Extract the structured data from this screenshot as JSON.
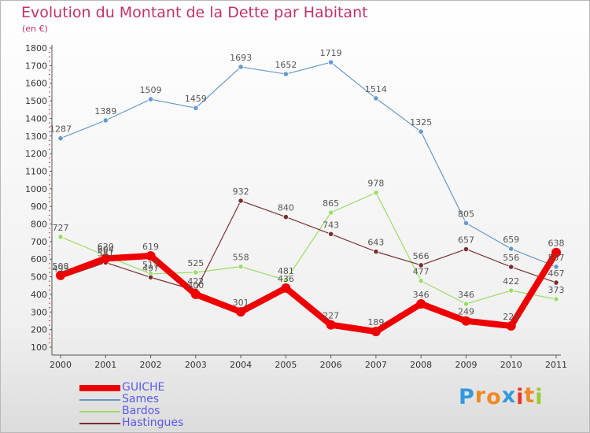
{
  "header": {
    "title": "Evolution du Montant de la Dette par Habitant",
    "unit": "(en €)"
  },
  "chart_data": {
    "type": "line",
    "title": "Evolution du Montant de la Dette par Habitant",
    "subtitle": "(en €)",
    "xlabel": "",
    "ylabel": "",
    "x": [
      "2000",
      "2001",
      "2002",
      "2003",
      "2004",
      "2005",
      "2006",
      "2007",
      "2008",
      "2009",
      "2010",
      "2011"
    ],
    "ylim": [
      100,
      1800
    ],
    "yticks": [
      100,
      200,
      300,
      400,
      500,
      600,
      700,
      800,
      900,
      1000,
      1100,
      1200,
      1300,
      1400,
      1500,
      1600,
      1700,
      1800
    ],
    "grid": false,
    "legend_position": "bottom-left",
    "series": [
      {
        "name": "GUICHE",
        "color": "#ee0000",
        "values": [
          508,
          604,
          619,
          400,
          301,
          436,
          227,
          189,
          346,
          249,
          221,
          638
        ]
      },
      {
        "name": "Sames",
        "color": "#6699cc",
        "values": [
          1287,
          1389,
          1509,
          1459,
          1693,
          1652,
          1719,
          1514,
          1325,
          805,
          659,
          557
        ]
      },
      {
        "name": "Bardos",
        "color": "#99dd66",
        "values": [
          727,
          620,
          517,
          525,
          558,
          481,
          865,
          978,
          477,
          346,
          422,
          373
        ]
      },
      {
        "name": "Hastingues",
        "color": "#7a2e2e",
        "values": [
          493,
          581,
          497,
          422,
          932,
          840,
          743,
          643,
          566,
          657,
          556,
          467
        ]
      }
    ]
  },
  "legend": {
    "items": [
      {
        "label": "GUICHE",
        "color": "#ee0000"
      },
      {
        "label": "Sames",
        "color": "#6699cc"
      },
      {
        "label": "Bardos",
        "color": "#99dd66"
      },
      {
        "label": "Hastingues",
        "color": "#7a2e2e"
      }
    ]
  },
  "logo": {
    "text": "Proxiti",
    "colors": [
      "#3399dd",
      "#ee8822",
      "#ee8822",
      "#3399dd",
      "#ee3322",
      "#ee8822",
      "#99cc33"
    ]
  }
}
